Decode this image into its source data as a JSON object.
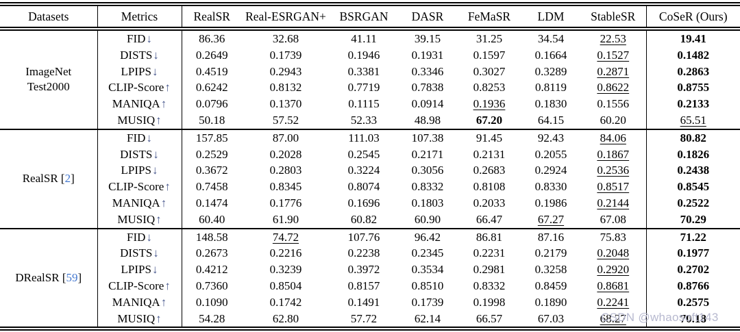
{
  "table": {
    "header": {
      "datasets": "Datasets",
      "metrics": "Metrics",
      "methods": [
        "RealSR",
        "Real-ESRGAN+",
        "BSRGAN",
        "DASR",
        "FeMaSR",
        "LDM",
        "StableSR",
        "CoSeR (Ours)"
      ]
    },
    "sections": [
      {
        "dataset_lines": [
          "ImageNet",
          "Test2000"
        ],
        "citation": "",
        "rows": [
          {
            "metric": "FID",
            "arrow": "↓",
            "values": [
              "86.36",
              "32.68",
              "41.11",
              "39.15",
              "31.25",
              "34.54",
              "22.53",
              "19.41"
            ],
            "styles": [
              "n",
              "n",
              "n",
              "n",
              "n",
              "n",
              "u",
              "b"
            ]
          },
          {
            "metric": "DISTS",
            "arrow": "↓",
            "values": [
              "0.2649",
              "0.1739",
              "0.1946",
              "0.1931",
              "0.1597",
              "0.1664",
              "0.1527",
              "0.1482"
            ],
            "styles": [
              "n",
              "n",
              "n",
              "n",
              "n",
              "n",
              "u",
              "b"
            ]
          },
          {
            "metric": "LPIPS",
            "arrow": "↓",
            "values": [
              "0.4519",
              "0.2943",
              "0.3381",
              "0.3346",
              "0.3027",
              "0.3289",
              "0.2871",
              "0.2863"
            ],
            "styles": [
              "n",
              "n",
              "n",
              "n",
              "n",
              "n",
              "u",
              "b"
            ]
          },
          {
            "metric": "CLIP-Score",
            "arrow": "↑",
            "values": [
              "0.6242",
              "0.8132",
              "0.7719",
              "0.7838",
              "0.8253",
              "0.8119",
              "0.8622",
              "0.8755"
            ],
            "styles": [
              "n",
              "n",
              "n",
              "n",
              "n",
              "n",
              "u",
              "b"
            ]
          },
          {
            "metric": "MANIQA",
            "arrow": "↑",
            "values": [
              "0.0796",
              "0.1370",
              "0.1115",
              "0.0914",
              "0.1936",
              "0.1830",
              "0.1556",
              "0.2133"
            ],
            "styles": [
              "n",
              "n",
              "n",
              "n",
              "u",
              "n",
              "n",
              "b"
            ]
          },
          {
            "metric": "MUSIQ",
            "arrow": "↑",
            "values": [
              "50.18",
              "57.52",
              "52.33",
              "48.98",
              "67.20",
              "64.15",
              "60.20",
              "65.51"
            ],
            "styles": [
              "n",
              "n",
              "n",
              "n",
              "b",
              "n",
              "n",
              "u"
            ]
          }
        ]
      },
      {
        "dataset_lines": [
          "RealSR"
        ],
        "citation": "2",
        "rows": [
          {
            "metric": "FID",
            "arrow": "↓",
            "values": [
              "157.85",
              "87.00",
              "111.03",
              "107.38",
              "91.45",
              "92.43",
              "84.06",
              "80.82"
            ],
            "styles": [
              "n",
              "n",
              "n",
              "n",
              "n",
              "n",
              "u",
              "b"
            ]
          },
          {
            "metric": "DISTS",
            "arrow": "↓",
            "values": [
              "0.2529",
              "0.2028",
              "0.2545",
              "0.2171",
              "0.2131",
              "0.2055",
              "0.1867",
              "0.1826"
            ],
            "styles": [
              "n",
              "n",
              "n",
              "n",
              "n",
              "n",
              "u",
              "b"
            ]
          },
          {
            "metric": "LPIPS",
            "arrow": "↓",
            "values": [
              "0.3672",
              "0.2803",
              "0.3224",
              "0.3056",
              "0.2683",
              "0.2924",
              "0.2536",
              "0.2438"
            ],
            "styles": [
              "n",
              "n",
              "n",
              "n",
              "n",
              "n",
              "u",
              "b"
            ]
          },
          {
            "metric": "CLIP-Score",
            "arrow": "↑",
            "values": [
              "0.7458",
              "0.8345",
              "0.8074",
              "0.8332",
              "0.8108",
              "0.8330",
              "0.8517",
              "0.8545"
            ],
            "styles": [
              "n",
              "n",
              "n",
              "n",
              "n",
              "n",
              "u",
              "b"
            ]
          },
          {
            "metric": "MANIQA",
            "arrow": "↑",
            "values": [
              "0.1474",
              "0.1776",
              "0.1696",
              "0.1803",
              "0.2033",
              "0.1986",
              "0.2144",
              "0.2522"
            ],
            "styles": [
              "n",
              "n",
              "n",
              "n",
              "n",
              "n",
              "u",
              "b"
            ]
          },
          {
            "metric": "MUSIQ",
            "arrow": "↑",
            "values": [
              "60.40",
              "61.90",
              "60.82",
              "60.90",
              "66.47",
              "67.27",
              "67.08",
              "70.29"
            ],
            "styles": [
              "n",
              "n",
              "n",
              "n",
              "n",
              "u",
              "n",
              "b"
            ]
          }
        ]
      },
      {
        "dataset_lines": [
          "DRealSR"
        ],
        "citation": "59",
        "rows": [
          {
            "metric": "FID",
            "arrow": "↓",
            "values": [
              "148.58",
              "74.72",
              "107.76",
              "96.42",
              "86.81",
              "87.16",
              "75.83",
              "71.22"
            ],
            "styles": [
              "n",
              "u",
              "n",
              "n",
              "n",
              "n",
              "n",
              "b"
            ]
          },
          {
            "metric": "DISTS",
            "arrow": "↓",
            "values": [
              "0.2673",
              "0.2216",
              "0.2238",
              "0.2345",
              "0.2231",
              "0.2179",
              "0.2048",
              "0.1977"
            ],
            "styles": [
              "n",
              "n",
              "n",
              "n",
              "n",
              "n",
              "u",
              "b"
            ]
          },
          {
            "metric": "LPIPS",
            "arrow": "↓",
            "values": [
              "0.4212",
              "0.3239",
              "0.3972",
              "0.3534",
              "0.2981",
              "0.3258",
              "0.2920",
              "0.2702"
            ],
            "styles": [
              "n",
              "n",
              "n",
              "n",
              "n",
              "n",
              "u",
              "b"
            ]
          },
          {
            "metric": "CLIP-Score",
            "arrow": "↑",
            "values": [
              "0.7360",
              "0.8504",
              "0.8157",
              "0.8510",
              "0.8332",
              "0.8459",
              "0.8681",
              "0.8766"
            ],
            "styles": [
              "n",
              "n",
              "n",
              "n",
              "n",
              "n",
              "u",
              "b"
            ]
          },
          {
            "metric": "MANIQA",
            "arrow": "↑",
            "values": [
              "0.1090",
              "0.1742",
              "0.1491",
              "0.1739",
              "0.1998",
              "0.1890",
              "0.2241",
              "0.2575"
            ],
            "styles": [
              "n",
              "n",
              "n",
              "n",
              "n",
              "n",
              "u",
              "b"
            ]
          },
          {
            "metric": "MUSIQ",
            "arrow": "↑",
            "values": [
              "54.28",
              "62.80",
              "57.72",
              "62.14",
              "66.57",
              "67.03",
              "68.27",
              "70.18"
            ],
            "styles": [
              "n",
              "n",
              "n",
              "n",
              "n",
              "n",
              "u",
              "b"
            ]
          }
        ]
      }
    ]
  },
  "watermark": "CSDN @whaosoft143",
  "colors": {
    "citation_blue": "#4377cf",
    "arrow_blue": "#46568c",
    "watermark_gray": "#b7b9cf",
    "text_black": "#000000"
  }
}
